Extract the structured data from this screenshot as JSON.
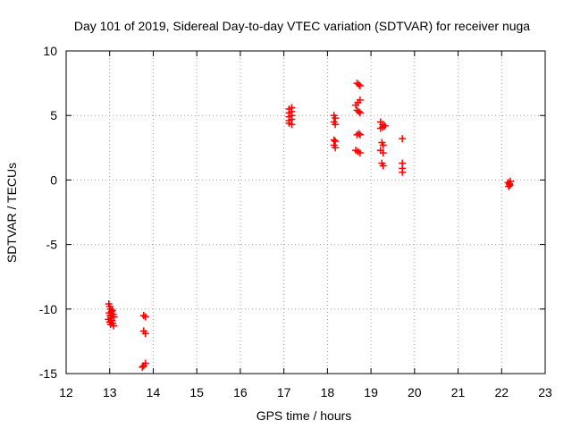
{
  "chart_data": {
    "type": "scatter",
    "title": "Day 101 of 2019, Sidereal Day-to-day VTEC variation (SDTVAR) for receiver nuga",
    "xlabel": "GPS time / hours",
    "ylabel": "SDTVAR / TECUs",
    "xlim": [
      12,
      23
    ],
    "ylim": [
      -15,
      10
    ],
    "xticks": [
      12,
      13,
      14,
      15,
      16,
      17,
      18,
      19,
      20,
      21,
      22,
      23
    ],
    "yticks": [
      -15,
      -10,
      -5,
      0,
      5,
      10
    ],
    "grid": true,
    "marker": "+",
    "color": "#ff0000",
    "series": [
      {
        "name": "SDTVAR",
        "points": [
          [
            12.98,
            -9.6
          ],
          [
            13.0,
            -9.8
          ],
          [
            13.02,
            -10.0
          ],
          [
            13.04,
            -10.2
          ],
          [
            13.06,
            -10.1
          ],
          [
            13.08,
            -10.4
          ],
          [
            13.1,
            -10.6
          ],
          [
            12.99,
            -10.3
          ],
          [
            13.01,
            -10.5
          ],
          [
            13.03,
            -10.7
          ],
          [
            13.05,
            -10.9
          ],
          [
            13.07,
            -11.1
          ],
          [
            13.09,
            -11.3
          ],
          [
            12.97,
            -10.8
          ],
          [
            13.0,
            -11.0
          ],
          [
            13.02,
            -11.2
          ],
          [
            13.78,
            -10.5
          ],
          [
            13.82,
            -10.6
          ],
          [
            13.78,
            -11.7
          ],
          [
            13.82,
            -11.9
          ],
          [
            13.75,
            -14.5
          ],
          [
            13.78,
            -14.4
          ],
          [
            13.82,
            -14.2
          ],
          [
            17.12,
            5.5
          ],
          [
            17.18,
            5.6
          ],
          [
            17.12,
            5.2
          ],
          [
            17.18,
            5.3
          ],
          [
            17.12,
            4.9
          ],
          [
            17.18,
            5.0
          ],
          [
            17.12,
            4.6
          ],
          [
            17.18,
            4.7
          ],
          [
            17.12,
            4.4
          ],
          [
            17.18,
            4.3
          ],
          [
            18.15,
            5.0
          ],
          [
            18.18,
            4.8
          ],
          [
            18.15,
            4.5
          ],
          [
            18.18,
            4.3
          ],
          [
            18.15,
            3.1
          ],
          [
            18.18,
            3.0
          ],
          [
            18.15,
            2.7
          ],
          [
            18.18,
            2.5
          ],
          [
            18.68,
            7.5
          ],
          [
            18.72,
            7.4
          ],
          [
            18.75,
            7.3
          ],
          [
            18.65,
            5.8
          ],
          [
            18.7,
            6.0
          ],
          [
            18.75,
            6.2
          ],
          [
            18.68,
            5.4
          ],
          [
            18.72,
            5.3
          ],
          [
            18.75,
            5.2
          ],
          [
            18.68,
            3.5
          ],
          [
            18.72,
            3.6
          ],
          [
            18.75,
            3.5
          ],
          [
            18.65,
            2.3
          ],
          [
            18.7,
            2.2
          ],
          [
            18.75,
            2.1
          ],
          [
            19.22,
            4.5
          ],
          [
            19.27,
            4.3
          ],
          [
            19.32,
            4.2
          ],
          [
            19.22,
            4.0
          ],
          [
            19.27,
            4.1
          ],
          [
            19.25,
            2.9
          ],
          [
            19.28,
            2.7
          ],
          [
            19.22,
            2.3
          ],
          [
            19.28,
            2.1
          ],
          [
            19.25,
            1.3
          ],
          [
            19.28,
            1.1
          ],
          [
            19.72,
            3.2
          ],
          [
            19.72,
            1.3
          ],
          [
            19.72,
            0.9
          ],
          [
            19.72,
            0.6
          ],
          [
            22.15,
            -0.2
          ],
          [
            22.18,
            -0.3
          ],
          [
            22.2,
            -0.1
          ],
          [
            22.16,
            -0.5
          ],
          [
            22.19,
            -0.4
          ]
        ]
      }
    ]
  }
}
